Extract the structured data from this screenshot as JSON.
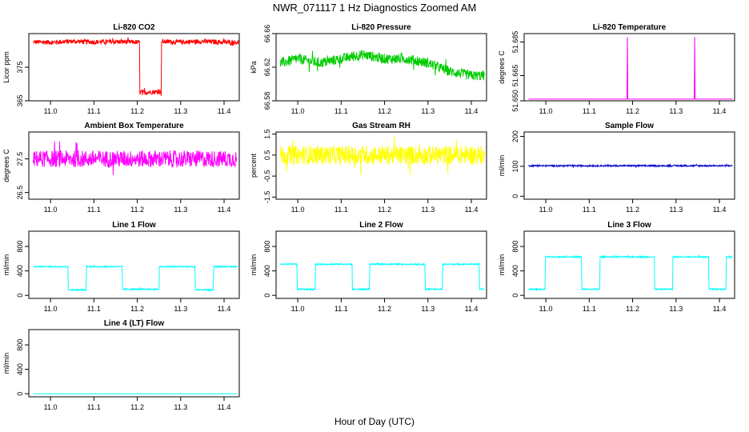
{
  "title": "NWR_071117  1 Hz Diagnostics Zoomed AM",
  "xlabel": "Hour of Day (UTC)",
  "chart_data": [
    {
      "type": "line",
      "title": "Li-820 CO2",
      "ylabel": "Licor ppm",
      "color": "#ff0000",
      "xlim": [
        10.95,
        11.435
      ],
      "ylim": [
        365,
        385
      ],
      "xticks": [
        "11.0",
        "11.1",
        "11.2",
        "11.3",
        "11.4"
      ],
      "yticks": [
        "365",
        "375"
      ],
      "x": [
        10.96,
        11.0,
        11.05,
        11.1,
        11.15,
        11.205,
        11.206,
        11.23,
        11.255,
        11.256,
        11.3,
        11.35,
        11.4,
        11.435
      ],
      "values": [
        382.5,
        382.4,
        382.7,
        382.5,
        382.6,
        382.4,
        367.5,
        367.6,
        367.8,
        382.6,
        382.5,
        382.7,
        382.4,
        382.4
      ],
      "noise": 0.7
    },
    {
      "type": "line",
      "title": "Li-820 Pressure",
      "ylabel": "kPa",
      "color": "#00cc00",
      "xlim": [
        10.95,
        11.435
      ],
      "ylim": [
        66.58,
        66.66
      ],
      "xticks": [
        "11.0",
        "11.1",
        "11.2",
        "11.3",
        "11.4"
      ],
      "yticks": [
        "66.58",
        "66.62",
        "66.66"
      ],
      "x": [
        10.96,
        11.0,
        11.05,
        11.1,
        11.15,
        11.2,
        11.25,
        11.3,
        11.35,
        11.4,
        11.43
      ],
      "values": [
        66.625,
        66.63,
        66.625,
        66.63,
        66.635,
        66.63,
        66.63,
        66.625,
        66.615,
        66.61,
        66.61
      ],
      "noise": 0.006
    },
    {
      "type": "line",
      "title": "Li-820 Temperature",
      "ylabel": "degrees C",
      "color": "#ff00ff",
      "xlim": [
        10.95,
        11.435
      ],
      "ylim": [
        51.65,
        51.69
      ],
      "xticks": [
        "11.0",
        "11.1",
        "11.2",
        "11.3",
        "11.4"
      ],
      "yticks": [
        "51.650",
        "51.665",
        "51.685"
      ],
      "x": [
        10.96,
        11.187,
        11.188,
        11.189,
        11.19,
        11.342,
        11.343,
        11.344,
        11.43
      ],
      "values": [
        51.651,
        51.651,
        51.688,
        51.651,
        51.651,
        51.651,
        51.688,
        51.651,
        51.651
      ],
      "noise": 0
    },
    {
      "type": "line",
      "title": "Ambient Box Temperature",
      "ylabel": "degrees C",
      "color": "#ff00ff",
      "xlim": [
        10.95,
        11.435
      ],
      "ylim": [
        26.3,
        28.3
      ],
      "xticks": [
        "11.0",
        "11.1",
        "11.2",
        "11.3",
        "11.4"
      ],
      "yticks": [
        "26.5",
        "27.5"
      ],
      "x": [
        10.96,
        11.43
      ],
      "values": [
        27.5,
        27.5
      ],
      "noise": 0.25
    },
    {
      "type": "line",
      "title": "Gas Stream RH",
      "ylabel": "percent",
      "color": "#ffff00",
      "xlim": [
        10.95,
        11.435
      ],
      "ylim": [
        -1.6,
        1.6
      ],
      "xticks": [
        "11.0",
        "11.1",
        "11.2",
        "11.3",
        "11.4"
      ],
      "yticks": [
        "-1.5",
        "-0.5",
        "0.5",
        "1.5"
      ],
      "x": [
        10.96,
        11.43
      ],
      "values": [
        0.5,
        0.5
      ],
      "noise": 0.45
    },
    {
      "type": "line",
      "title": "Sample Flow",
      "ylabel": "ml/min",
      "color": "#0000cc",
      "xlim": [
        10.95,
        11.435
      ],
      "ylim": [
        -10,
        215
      ],
      "xticks": [
        "11.0",
        "11.1",
        "11.2",
        "11.3",
        "11.4"
      ],
      "yticks": [
        "0",
        "100",
        "200"
      ],
      "x": [
        10.96,
        11.43
      ],
      "values": [
        102,
        102
      ],
      "noise": 2.5
    },
    {
      "type": "line",
      "title": "Line 1 Flow",
      "ylabel": "ml/min",
      "color": "#00ffff",
      "xlim": [
        10.95,
        11.435
      ],
      "ylim": [
        -50,
        1050
      ],
      "xticks": [
        "11.0",
        "11.1",
        "11.2",
        "11.3",
        "11.4"
      ],
      "yticks": [
        "0",
        "400",
        "800"
      ],
      "x": [
        10.96,
        11.04,
        11.041,
        11.082,
        11.083,
        11.165,
        11.166,
        11.25,
        11.251,
        11.333,
        11.334,
        11.375,
        11.376,
        11.43
      ],
      "values": [
        470,
        470,
        90,
        90,
        470,
        470,
        100,
        100,
        470,
        470,
        90,
        90,
        470,
        470
      ],
      "noise": 10
    },
    {
      "type": "line",
      "title": "Line 2 Flow",
      "ylabel": "ml/min",
      "color": "#00ffff",
      "xlim": [
        10.95,
        11.435
      ],
      "ylim": [
        -50,
        1050
      ],
      "xticks": [
        "11.0",
        "11.1",
        "11.2",
        "11.3",
        "11.4"
      ],
      "yticks": [
        "0",
        "400",
        "800"
      ],
      "x": [
        10.96,
        10.998,
        10.999,
        11.04,
        11.041,
        11.125,
        11.126,
        11.165,
        11.166,
        11.293,
        11.294,
        11.333,
        11.334,
        11.418,
        11.419,
        11.43
      ],
      "values": [
        510,
        510,
        100,
        100,
        510,
        510,
        100,
        100,
        510,
        510,
        100,
        100,
        510,
        510,
        100,
        100
      ],
      "noise": 10
    },
    {
      "type": "line",
      "title": "Line 3 Flow",
      "ylabel": "ml/min",
      "color": "#00ffff",
      "xlim": [
        10.95,
        11.435
      ],
      "ylim": [
        -50,
        1050
      ],
      "xticks": [
        "11.0",
        "11.1",
        "11.2",
        "11.3",
        "11.4"
      ],
      "yticks": [
        "0",
        "400",
        "800"
      ],
      "x": [
        10.96,
        10.998,
        10.999,
        11.082,
        11.083,
        11.124,
        11.125,
        11.25,
        11.251,
        11.292,
        11.293,
        11.375,
        11.376,
        11.415,
        11.416,
        11.43
      ],
      "values": [
        100,
        100,
        630,
        630,
        100,
        100,
        630,
        630,
        100,
        100,
        630,
        630,
        100,
        100,
        630,
        630
      ],
      "noise": 10
    },
    {
      "type": "line",
      "title": "Line 4 (LT) Flow",
      "ylabel": "ml/min",
      "color": "#00ffff",
      "xlim": [
        10.95,
        11.435
      ],
      "ylim": [
        -50,
        1050
      ],
      "xticks": [
        "11.0",
        "11.1",
        "11.2",
        "11.3",
        "11.4"
      ],
      "yticks": [
        "0",
        "400",
        "800"
      ],
      "x": [
        10.96,
        11.43
      ],
      "values": [
        0,
        0
      ],
      "noise": 1
    }
  ]
}
